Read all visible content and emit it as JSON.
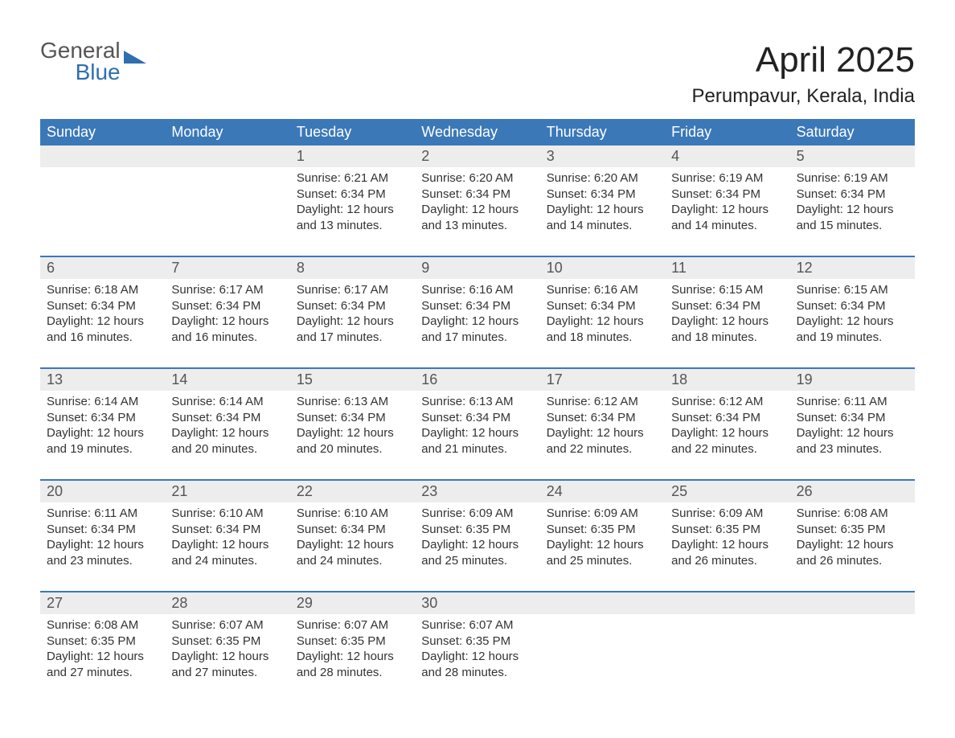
{
  "logo": {
    "word1": "General",
    "word2": "Blue",
    "word1_color": "#555555",
    "word2_color": "#2f6fb0",
    "icon_color": "#2f6fb0"
  },
  "title": "April 2025",
  "location": "Perumpavur, Kerala, India",
  "colors": {
    "header_bg": "#3b78b8",
    "header_text": "#ffffff",
    "band_bg": "#ededed",
    "band_text": "#555555",
    "body_text": "#333333",
    "rule": "#3b78b8",
    "page_bg": "#ffffff"
  },
  "weekdays": [
    "Sunday",
    "Monday",
    "Tuesday",
    "Wednesday",
    "Thursday",
    "Friday",
    "Saturday"
  ],
  "weeks": [
    [
      null,
      null,
      {
        "n": "1",
        "sr": "6:21 AM",
        "ss": "6:34 PM",
        "dl": "12 hours and 13 minutes."
      },
      {
        "n": "2",
        "sr": "6:20 AM",
        "ss": "6:34 PM",
        "dl": "12 hours and 13 minutes."
      },
      {
        "n": "3",
        "sr": "6:20 AM",
        "ss": "6:34 PM",
        "dl": "12 hours and 14 minutes."
      },
      {
        "n": "4",
        "sr": "6:19 AM",
        "ss": "6:34 PM",
        "dl": "12 hours and 14 minutes."
      },
      {
        "n": "5",
        "sr": "6:19 AM",
        "ss": "6:34 PM",
        "dl": "12 hours and 15 minutes."
      }
    ],
    [
      {
        "n": "6",
        "sr": "6:18 AM",
        "ss": "6:34 PM",
        "dl": "12 hours and 16 minutes."
      },
      {
        "n": "7",
        "sr": "6:17 AM",
        "ss": "6:34 PM",
        "dl": "12 hours and 16 minutes."
      },
      {
        "n": "8",
        "sr": "6:17 AM",
        "ss": "6:34 PM",
        "dl": "12 hours and 17 minutes."
      },
      {
        "n": "9",
        "sr": "6:16 AM",
        "ss": "6:34 PM",
        "dl": "12 hours and 17 minutes."
      },
      {
        "n": "10",
        "sr": "6:16 AM",
        "ss": "6:34 PM",
        "dl": "12 hours and 18 minutes."
      },
      {
        "n": "11",
        "sr": "6:15 AM",
        "ss": "6:34 PM",
        "dl": "12 hours and 18 minutes."
      },
      {
        "n": "12",
        "sr": "6:15 AM",
        "ss": "6:34 PM",
        "dl": "12 hours and 19 minutes."
      }
    ],
    [
      {
        "n": "13",
        "sr": "6:14 AM",
        "ss": "6:34 PM",
        "dl": "12 hours and 19 minutes."
      },
      {
        "n": "14",
        "sr": "6:14 AM",
        "ss": "6:34 PM",
        "dl": "12 hours and 20 minutes."
      },
      {
        "n": "15",
        "sr": "6:13 AM",
        "ss": "6:34 PM",
        "dl": "12 hours and 20 minutes."
      },
      {
        "n": "16",
        "sr": "6:13 AM",
        "ss": "6:34 PM",
        "dl": "12 hours and 21 minutes."
      },
      {
        "n": "17",
        "sr": "6:12 AM",
        "ss": "6:34 PM",
        "dl": "12 hours and 22 minutes."
      },
      {
        "n": "18",
        "sr": "6:12 AM",
        "ss": "6:34 PM",
        "dl": "12 hours and 22 minutes."
      },
      {
        "n": "19",
        "sr": "6:11 AM",
        "ss": "6:34 PM",
        "dl": "12 hours and 23 minutes."
      }
    ],
    [
      {
        "n": "20",
        "sr": "6:11 AM",
        "ss": "6:34 PM",
        "dl": "12 hours and 23 minutes."
      },
      {
        "n": "21",
        "sr": "6:10 AM",
        "ss": "6:34 PM",
        "dl": "12 hours and 24 minutes."
      },
      {
        "n": "22",
        "sr": "6:10 AM",
        "ss": "6:34 PM",
        "dl": "12 hours and 24 minutes."
      },
      {
        "n": "23",
        "sr": "6:09 AM",
        "ss": "6:35 PM",
        "dl": "12 hours and 25 minutes."
      },
      {
        "n": "24",
        "sr": "6:09 AM",
        "ss": "6:35 PM",
        "dl": "12 hours and 25 minutes."
      },
      {
        "n": "25",
        "sr": "6:09 AM",
        "ss": "6:35 PM",
        "dl": "12 hours and 26 minutes."
      },
      {
        "n": "26",
        "sr": "6:08 AM",
        "ss": "6:35 PM",
        "dl": "12 hours and 26 minutes."
      }
    ],
    [
      {
        "n": "27",
        "sr": "6:08 AM",
        "ss": "6:35 PM",
        "dl": "12 hours and 27 minutes."
      },
      {
        "n": "28",
        "sr": "6:07 AM",
        "ss": "6:35 PM",
        "dl": "12 hours and 27 minutes."
      },
      {
        "n": "29",
        "sr": "6:07 AM",
        "ss": "6:35 PM",
        "dl": "12 hours and 28 minutes."
      },
      {
        "n": "30",
        "sr": "6:07 AM",
        "ss": "6:35 PM",
        "dl": "12 hours and 28 minutes."
      },
      null,
      null,
      null
    ]
  ],
  "labels": {
    "sunrise_prefix": "Sunrise: ",
    "sunset_prefix": "Sunset: ",
    "daylight_prefix": "Daylight: "
  }
}
